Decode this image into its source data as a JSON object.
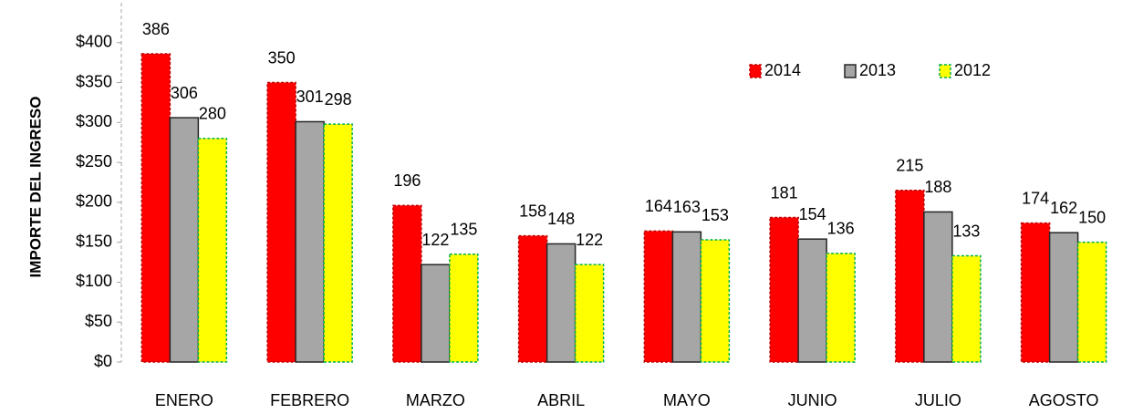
{
  "chart_data": {
    "type": "bar",
    "y_label": "IMPORTE DEL INGRESO",
    "categories": [
      "ENERO",
      "FEBRERO",
      "MARZO",
      "ABRIL",
      "MAYO",
      "JUNIO",
      "JULIO",
      "AGOSTO"
    ],
    "series": [
      {
        "name": "2014",
        "color": "#ff0000",
        "edgecolor": "#c00000",
        "linestyle": "dashed",
        "values": [
          386,
          350,
          196,
          158,
          164,
          181,
          215,
          174
        ]
      },
      {
        "name": "2013",
        "color": "#a6a6a6",
        "edgecolor": "#262626",
        "linestyle": "solid",
        "values": [
          306,
          301,
          122,
          148,
          163,
          154,
          188,
          162
        ]
      },
      {
        "name": "2012",
        "color": "#ffff00",
        "edgecolor": "#00b050",
        "linestyle": "dashed",
        "values": [
          280,
          298,
          135,
          122,
          153,
          136,
          133,
          150
        ]
      }
    ],
    "ylim": [
      0,
      450
    ],
    "yticks": [
      {
        "value": 0,
        "label": "$0"
      },
      {
        "value": 50,
        "label": "$50"
      },
      {
        "value": 100,
        "label": "$100"
      },
      {
        "value": 150,
        "label": "$150"
      },
      {
        "value": 200,
        "label": "$200"
      },
      {
        "value": 250,
        "label": "$250"
      },
      {
        "value": 300,
        "label": "$300"
      },
      {
        "value": 350,
        "label": "$350"
      },
      {
        "value": 400,
        "label": "$400"
      }
    ],
    "grid": false,
    "legend": "upper right"
  }
}
